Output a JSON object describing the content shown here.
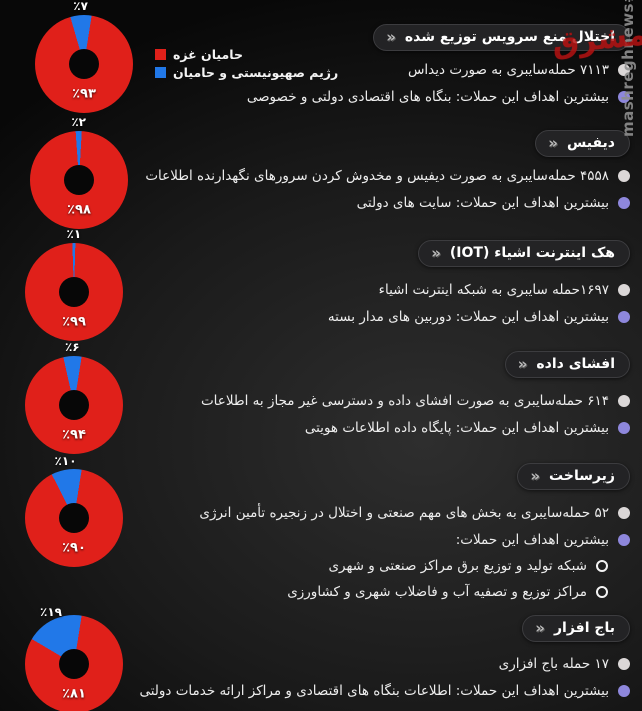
{
  "watermark": {
    "vertical_text": "mashreghnews#",
    "logo_text": "مشرق"
  },
  "legend": {
    "items": [
      {
        "label": "حامیان غزه",
        "color": "#e0201a"
      },
      {
        "label": "رژیم صهیونیستی و حامیان",
        "color": "#2178e8"
      }
    ]
  },
  "sections": [
    {
      "header": "اختلال منع سرویس توزیع شده",
      "chevron": "«",
      "bullets": [
        {
          "marker": "dot-white",
          "text": "۷۱۱۳ حمله‌سایبری به صورت دیداس"
        },
        {
          "marker": "dot-purple",
          "text": "بیشترین اهداف این حملات: بنگاه های اقتصادی دولتی و خصوصی"
        }
      ]
    },
    {
      "header": "دیفیس",
      "chevron": "«",
      "bullets": [
        {
          "marker": "dot-white",
          "text": "۴۵۵۸ حمله‌سایبری به صورت دیفیس و مخدوش کردن سرورهای نگهدارنده اطلاعات"
        },
        {
          "marker": "dot-purple",
          "text": "بیشترین اهداف این حملات: سایت های دولتی"
        }
      ]
    },
    {
      "header": "هک اینترنت اشیاء (IOT)",
      "chevron": "«",
      "bullets": [
        {
          "marker": "dot-white",
          "text": "۱۶۹۷حمله سایبری به شبکه اینترنت اشیاء"
        },
        {
          "marker": "dot-purple",
          "text": "بیشترین اهداف این حملات: دوربین های مدار بسته"
        }
      ]
    },
    {
      "header": "افشای داده",
      "chevron": "«",
      "bullets": [
        {
          "marker": "dot-white",
          "text": "۶۱۴ حمله‌سایبری به صورت افشای داده و دسترسی غیر مجاز به اطلاعات"
        },
        {
          "marker": "dot-purple",
          "text": "بیشترین اهداف این حملات: پایگاه داده اطلاعات هویتی"
        }
      ]
    },
    {
      "header": "زیرساخت",
      "chevron": "«",
      "bullets": [
        {
          "marker": "dot-white",
          "text": "۵۲ حمله‌سایبری به بخش های مهم صنعتی و اختلال در زنجیره تأمین انرژی"
        },
        {
          "marker": "dot-purple",
          "text": "بیشترین اهداف این حملات:"
        },
        {
          "marker": "circle-outline",
          "text": "شبکه تولید و توزیع برق مراکز صنعتی و شهری"
        },
        {
          "marker": "circle-outline",
          "text": "مراکز توزیع و تصفیه آب و فاضلاب شهری و کشاورزی"
        }
      ]
    },
    {
      "header": "باج افزار",
      "chevron": "«",
      "bullets": [
        {
          "marker": "dot-white",
          "text": "۱۷ حمله باج افزاری"
        },
        {
          "marker": "dot-purple",
          "text": "بیشترین اهداف این حملات: اطلاعات بنگاه های اقتصادی و مراکز ارائه خدمات دولتی"
        }
      ]
    }
  ],
  "chart_data": [
    {
      "type": "pie",
      "donut": true,
      "title": "اختلال منع سرویس توزیع شده",
      "total_attacks": 7113,
      "slices": [
        {
          "label": "حامیان غزه",
          "pct": 93,
          "color": "#e0201a"
        },
        {
          "label": "رژیم صهیونیستی و حامیان",
          "pct": 7,
          "color": "#2178e8"
        }
      ],
      "inner_label": "٪۹۳",
      "outer_label": "٪۷"
    },
    {
      "type": "pie",
      "donut": true,
      "title": "دیفیس",
      "total_attacks": 4558,
      "slices": [
        {
          "label": "حامیان غزه",
          "pct": 98,
          "color": "#e0201a"
        },
        {
          "label": "رژیم صهیونیستی و حامیان",
          "pct": 2,
          "color": "#2178e8"
        }
      ],
      "inner_label": "٪۹۸",
      "outer_label": "٪۲"
    },
    {
      "type": "pie",
      "donut": true,
      "title": "هک اینترنت اشیاء (IOT)",
      "total_attacks": 1697,
      "slices": [
        {
          "label": "حامیان غزه",
          "pct": 99,
          "color": "#e0201a"
        },
        {
          "label": "رژیم صهیونیستی و حامیان",
          "pct": 1,
          "color": "#2178e8"
        }
      ],
      "inner_label": "٪۹۹",
      "outer_label": "٪۱"
    },
    {
      "type": "pie",
      "donut": true,
      "title": "افشای داده",
      "total_attacks": 614,
      "slices": [
        {
          "label": "حامیان غزه",
          "pct": 94,
          "color": "#e0201a"
        },
        {
          "label": "رژیم صهیونیستی و حامیان",
          "pct": 6,
          "color": "#2178e8"
        }
      ],
      "inner_label": "٪۹۴",
      "outer_label": "٪۶"
    },
    {
      "type": "pie",
      "donut": true,
      "title": "زیرساخت",
      "total_attacks": 52,
      "slices": [
        {
          "label": "حامیان غزه",
          "pct": 90,
          "color": "#e0201a"
        },
        {
          "label": "رژیم صهیونیستی و حامیان",
          "pct": 10,
          "color": "#2178e8"
        }
      ],
      "inner_label": "٪۹۰",
      "outer_label": "٪۱۰"
    },
    {
      "type": "pie",
      "donut": true,
      "title": "باج افزار",
      "total_attacks": 17,
      "slices": [
        {
          "label": "حامیان غزه",
          "pct": 81,
          "color": "#e0201a"
        },
        {
          "label": "رژیم صهیونیستی و حامیان",
          "pct": 19,
          "color": "#2178e8"
        }
      ],
      "inner_label": "٪۸۱",
      "outer_label": "٪۱۹"
    }
  ]
}
